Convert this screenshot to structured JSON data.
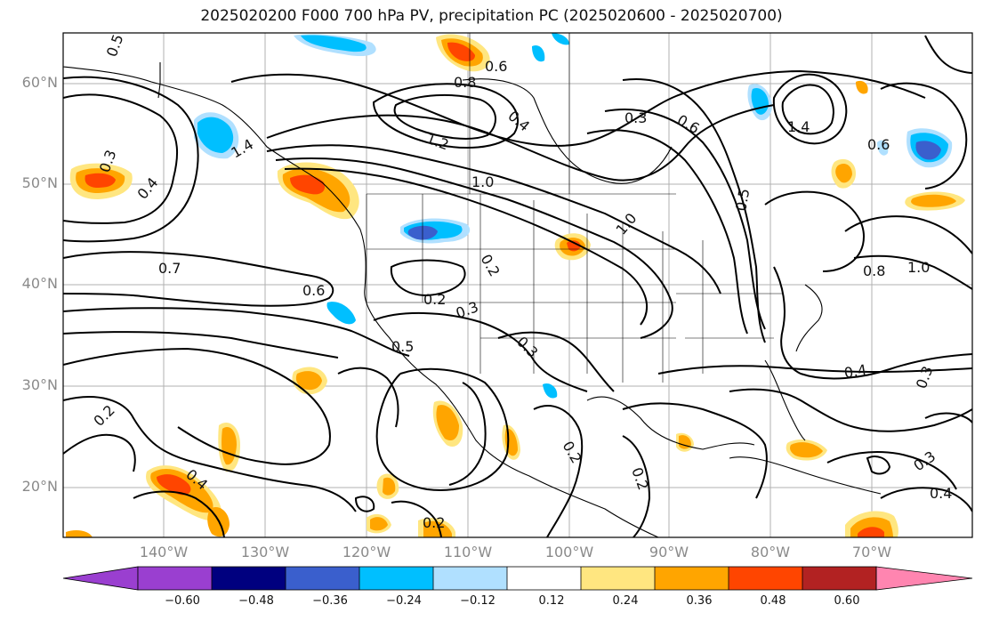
{
  "title": "2025020200 F000 700 hPa PV, precipitation PC (2025020600 - 2025020700)",
  "latitude_labels": [
    "60°N",
    "50°N",
    "40°N",
    "30°N",
    "20°N"
  ],
  "longitude_labels": [
    "140°W",
    "130°W",
    "120°W",
    "110°W",
    "100°W",
    "90°W",
    "80°W",
    "70°W"
  ],
  "colorbar": {
    "ticks": [
      "−0.60",
      "−0.48",
      "−0.36",
      "−0.24",
      "−0.12",
      "0.12",
      "0.24",
      "0.36",
      "0.48",
      "0.60"
    ],
    "colors": [
      "#9a3fd0",
      "#00007f",
      "#3a5fcd",
      "#00bfff",
      "#b0e0ff",
      "#ffffff",
      "#ffe680",
      "#ffa500",
      "#ff4500",
      "#b22222",
      "#ff85b0"
    ]
  },
  "contour_labels": [
    "0.5",
    "0.6",
    "0.8",
    "0.4",
    "1.4",
    "0.3",
    "1.2",
    "1.0",
    "0.2",
    "0.7",
    "0.6",
    "0.2",
    "0.3",
    "0.5",
    "0.3",
    "0.3",
    "0.4",
    "0.2",
    "0.2",
    "0.4",
    "0.2",
    "0.2",
    "0.3",
    "0.4",
    "0.8",
    "1.0",
    "0.6",
    "1.4",
    "0.6",
    "0.5",
    "0.4",
    "0.3",
    "1.0"
  ]
}
